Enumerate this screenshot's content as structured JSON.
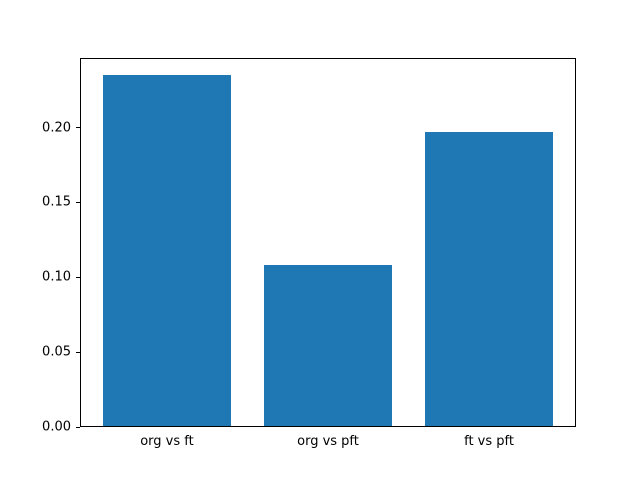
{
  "figure": {
    "background": "#ffffff"
  },
  "chart_data": {
    "type": "bar",
    "categories": [
      "org vs ft",
      "org vs pft",
      "ft vs pft"
    ],
    "values": [
      0.235,
      0.108,
      0.197
    ],
    "title": "",
    "xlabel": "",
    "ylabel": "",
    "xlim": [
      -0.54,
      2.54
    ],
    "ylim": [
      0,
      0.2467
    ],
    "yticks": [
      0,
      0.05,
      0.1,
      0.15,
      0.2
    ],
    "ytick_decimals": 2,
    "bar_width": 0.8,
    "bar_color": "#1f77b4",
    "axis_color": "#000000",
    "background": "#ffffff",
    "grid": false,
    "legend": "none"
  }
}
